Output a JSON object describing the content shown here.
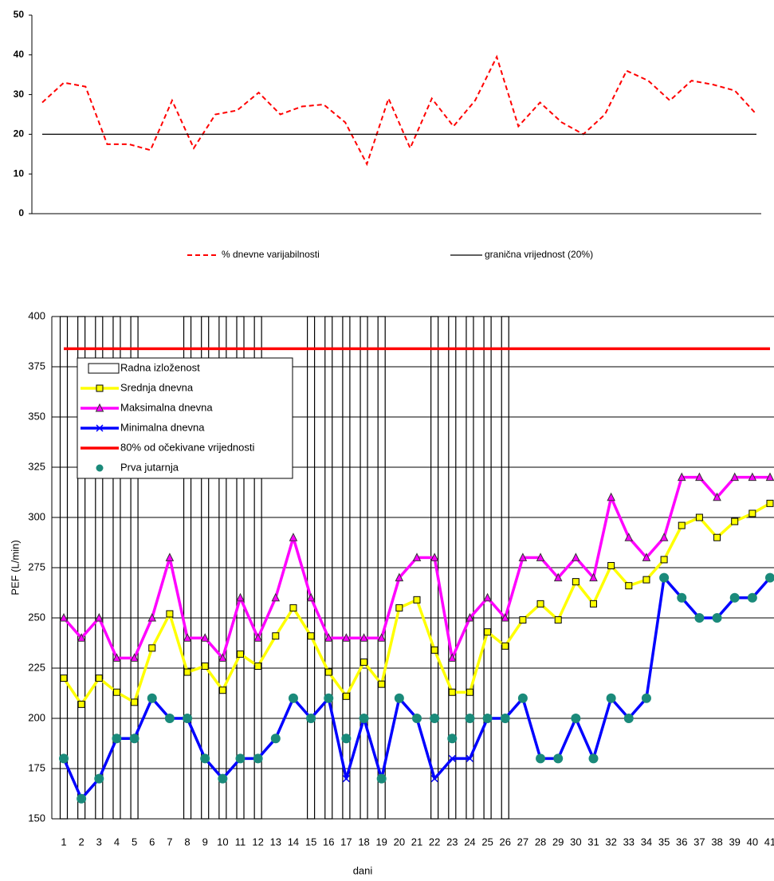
{
  "chart_data": [
    {
      "type": "line",
      "ylim": [
        0,
        50
      ],
      "yticks": [
        0,
        10,
        20,
        30,
        40,
        50
      ],
      "series": [
        {
          "name": "% dnevne varijabilnosti",
          "color": "#ff0000",
          "dash": true,
          "values": [
            28,
            33,
            32,
            17.5,
            17.5,
            16,
            28.5,
            16.5,
            25,
            26,
            30.5,
            25,
            27,
            27.5,
            23,
            12.5,
            29,
            16.5,
            29,
            22,
            28.5,
            39.5,
            22,
            28,
            23,
            20,
            25,
            36,
            33.5,
            28.5,
            33.5,
            32.5,
            31,
            25
          ]
        },
        {
          "name": "granična vrijednost (20%)",
          "color": "#000000",
          "dash": false,
          "values": [
            20,
            20,
            20,
            20,
            20,
            20,
            20,
            20,
            20,
            20,
            20,
            20,
            20,
            20,
            20,
            20,
            20,
            20,
            20,
            20,
            20,
            20,
            20,
            20,
            20,
            20,
            20,
            20,
            20,
            20,
            20,
            20,
            20,
            20
          ]
        }
      ]
    },
    {
      "type": "line",
      "x_label": "dani",
      "y_label": "PEF (L/min)",
      "ylim": [
        150,
        400
      ],
      "yticks": [
        150,
        175,
        200,
        225,
        250,
        275,
        300,
        325,
        350,
        375,
        400
      ],
      "grid": true,
      "categories": [
        "1",
        "2",
        "3",
        "4",
        "5",
        "6",
        "7",
        "8",
        "9",
        "10",
        "11",
        "12",
        "13",
        "14",
        "15",
        "16",
        "17",
        "18",
        "19",
        "20",
        "21",
        "22",
        "23",
        "24",
        "25",
        "26",
        "27",
        "28",
        "29",
        "30",
        "31",
        "32",
        "33",
        "34",
        "35",
        "36",
        "37",
        "38",
        "39",
        "40",
        "41"
      ],
      "series": [
        {
          "name": "Radna izloženost",
          "style": "bar",
          "color": "#000000",
          "values": [
            400,
            400,
            400,
            400,
            400,
            null,
            null,
            400,
            400,
            400,
            400,
            400,
            null,
            null,
            400,
            400,
            400,
            400,
            400,
            null,
            null,
            400,
            400,
            400,
            400,
            400,
            null,
            null,
            null,
            null,
            null,
            null,
            null,
            null,
            null,
            null,
            null,
            null,
            null,
            null,
            null
          ]
        },
        {
          "name": "Srednja dnevna",
          "style": "line",
          "color": "#ffff00",
          "marker": "square",
          "values": [
            220,
            207,
            220,
            213,
            208,
            235,
            252,
            223,
            226,
            214,
            232,
            226,
            241,
            255,
            241,
            223,
            211,
            228,
            217,
            255,
            259,
            234,
            213,
            213,
            243,
            236,
            249,
            257,
            249,
            268,
            257,
            276,
            266,
            269,
            279,
            296,
            300,
            290,
            298,
            302,
            307
          ]
        },
        {
          "name": "Maksimalna dnevna",
          "style": "line",
          "color": "#ff00ff",
          "marker": "triangle",
          "values": [
            250,
            240,
            250,
            230,
            230,
            250,
            280,
            240,
            240,
            230,
            260,
            240,
            260,
            290,
            260,
            240,
            240,
            240,
            240,
            270,
            280,
            280,
            230,
            250,
            260,
            250,
            280,
            280,
            270,
            280,
            270,
            310,
            290,
            280,
            290,
            320,
            320,
            310,
            320,
            320,
            320
          ]
        },
        {
          "name": "Minimalna dnevna",
          "style": "line",
          "color": "#0000ff",
          "marker": "x",
          "values": [
            180,
            160,
            170,
            190,
            190,
            210,
            200,
            200,
            180,
            170,
            180,
            180,
            190,
            210,
            200,
            210,
            170,
            200,
            170,
            210,
            200,
            170,
            180,
            180,
            200,
            200,
            210,
            180,
            180,
            200,
            180,
            210,
            200,
            210,
            270,
            260,
            250,
            250,
            260,
            260,
            270
          ]
        },
        {
          "name": "80% od očekivane vrijednosti",
          "style": "line",
          "color": "#ff0000",
          "values": [
            384,
            384,
            384,
            384,
            384,
            384,
            384,
            384,
            384,
            384,
            384,
            384,
            384,
            384,
            384,
            384,
            384,
            384,
            384,
            384,
            384,
            384,
            384,
            384,
            384,
            384,
            384,
            384,
            384,
            384,
            384,
            384,
            384,
            384,
            384,
            384,
            384,
            384,
            384,
            384,
            384
          ]
        },
        {
          "name": "Prva jutarnja",
          "style": "dots",
          "color": "#1a8a7a",
          "marker": "circle",
          "values": [
            180,
            160,
            170,
            190,
            190,
            210,
            200,
            200,
            180,
            170,
            180,
            180,
            190,
            210,
            200,
            210,
            190,
            200,
            170,
            210,
            200,
            200,
            190,
            200,
            200,
            200,
            210,
            180,
            180,
            200,
            180,
            210,
            200,
            210,
            270,
            260,
            250,
            250,
            260,
            260,
            270
          ]
        }
      ]
    }
  ]
}
